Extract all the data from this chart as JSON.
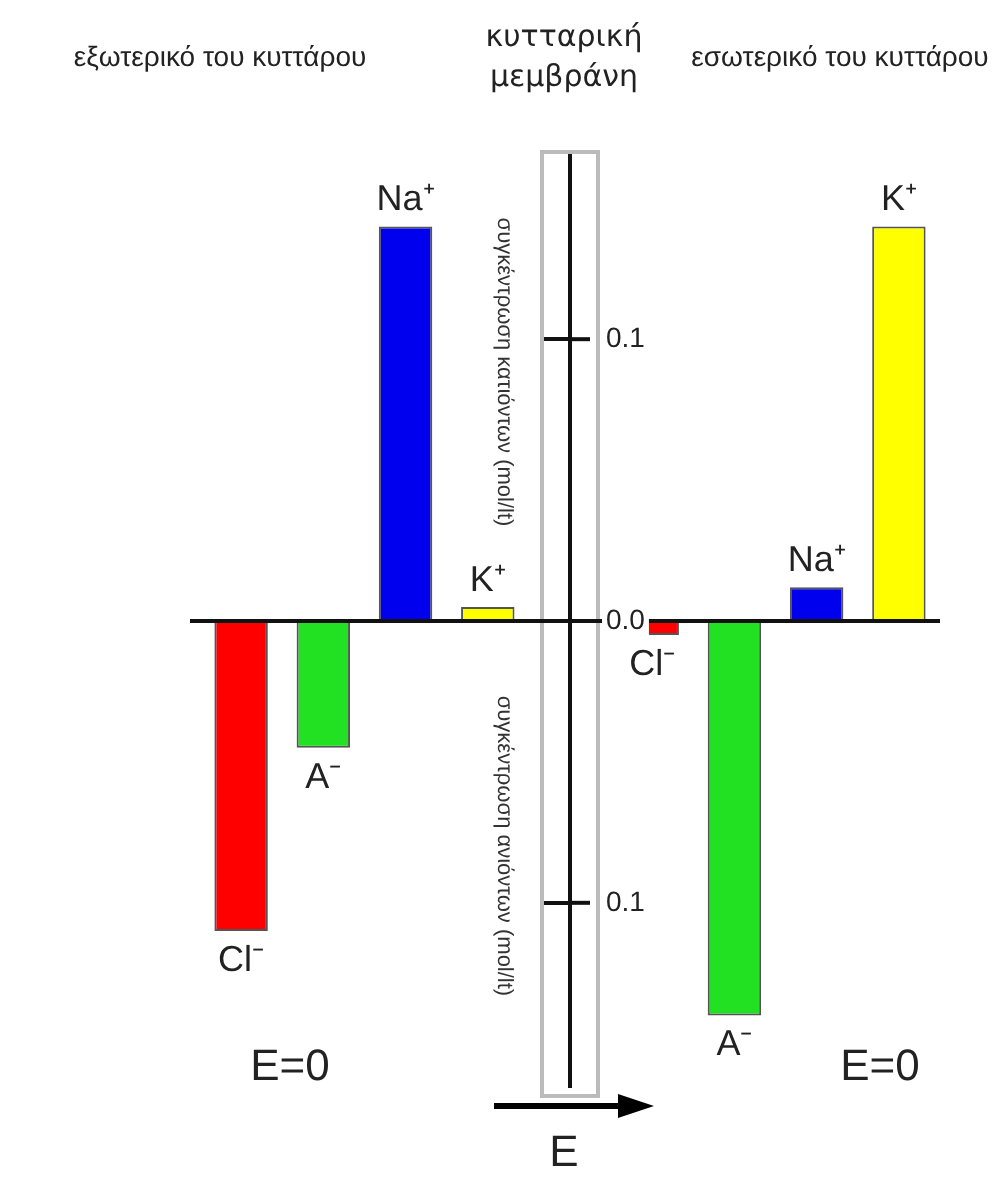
{
  "chart_data": {
    "type": "bar",
    "title": "κυτταρική μεμβράνη",
    "ylabel": "συγκέντρωση κατιόντων (mol/lt)",
    "categories": [
      "Cl⁻",
      "A⁻",
      "Na⁺",
      "K⁺",
      null,
      "Cl⁻",
      "A⁻",
      "Na⁺",
      "K⁺"
    ],
    "values": [
      -0.11,
      -0.045,
      0.14,
      0.005,
      null,
      -0.005,
      -0.14,
      0.012,
      0.14
    ],
    "colors": [
      "#ff0000",
      "#22e022",
      "#0000ee",
      "#ffff00",
      "#000000",
      "#ff0000",
      "#22e022",
      "#0000ee",
      "#ffff00"
    ],
    "ylim": [
      -0.165,
      0.165
    ],
    "yticks": [
      {
        "value": 0.1,
        "label": "0.1"
      },
      {
        "value": 0,
        "label": "0.0"
      },
      {
        "value": -0.1,
        "label": "0.1"
      }
    ],
    "annotations": [
      "εξωτερικό του κυττάρου",
      "εσωτερικό του κυττάρου",
      "συγκέντρωση ανιόντων (mol/lt)",
      "E=0",
      "E=0",
      "E"
    ]
  }
}
